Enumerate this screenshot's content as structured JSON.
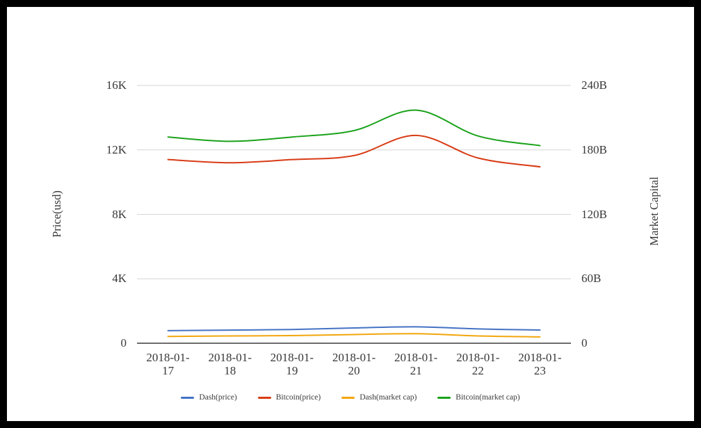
{
  "chart_data": {
    "type": "line",
    "smooth": true,
    "grid": true,
    "legend_position": "bottom",
    "x": [
      "2018-01-17",
      "2018-01-18",
      "2018-01-19",
      "2018-01-20",
      "2018-01-21",
      "2018-01-22",
      "2018-01-23"
    ],
    "left_axis": {
      "title": "Price(usd)",
      "ticks": [
        "0",
        "4K",
        "8K",
        "12K",
        "16K"
      ],
      "min": 0,
      "max": 16000,
      "unit": "USD"
    },
    "right_axis": {
      "title": "Market Capital",
      "ticks": [
        "0",
        "60B",
        "120B",
        "180B",
        "240B"
      ],
      "min": 0,
      "max": 240,
      "unit": "billion USD"
    },
    "series": [
      {
        "name": "Dash(price)",
        "axis": "left",
        "color": "#4472C4",
        "unit": "USD",
        "values": [
          780,
          815,
          850,
          950,
          1020,
          890,
          820
        ]
      },
      {
        "name": "Bitcoin(price)",
        "axis": "left",
        "color": "#D83B14",
        "unit": "USD",
        "values": [
          11400,
          11200,
          11400,
          11650,
          12900,
          11500,
          10950
        ]
      },
      {
        "name": "Dash(market cap)",
        "axis": "right",
        "color": "#F2A60C",
        "unit": "billion USD",
        "values": [
          6.3,
          6.8,
          7.1,
          8.1,
          8.9,
          6.8,
          5.9
        ]
      },
      {
        "name": "Bitcoin(market cap)",
        "axis": "right",
        "color": "#1AA21A",
        "unit": "billion USD",
        "values": [
          192,
          188,
          192,
          198,
          217,
          193,
          184
        ]
      }
    ]
  },
  "colors": {
    "frame": "#000000",
    "background": "#FFFFFF",
    "gridline": "#D6D6D6",
    "axis_line": "#3C3C3C",
    "text": "#383838"
  }
}
